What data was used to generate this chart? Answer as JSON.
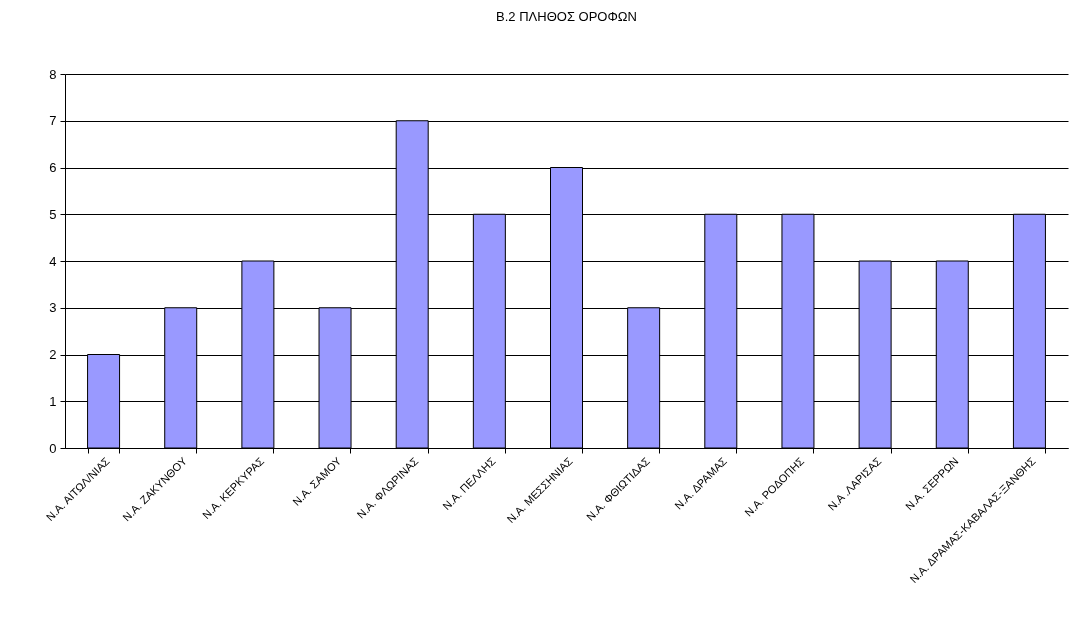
{
  "chart_data": {
    "type": "bar",
    "title": "Β.2 ΠΛΗΘΟΣ ΟΡΟΦΩΝ",
    "categories": [
      "Ν.Α. ΑΙΤΩΛ/ΝΙΑΣ",
      "Ν.Α. ΖΑΚΥΝΘΟΥ",
      "Ν.Α. ΚΕΡΚΥΡΑΣ",
      "Ν.Α. ΣΑΜΟΥ",
      "Ν.Α. ΦΛΩΡΙΝΑΣ",
      "Ν.Α. ΠΕΛΛΗΣ",
      "Ν.Α. ΜΕΣΣΗΝΙΑΣ",
      "Ν.Α. ΦΘΙΩΤΙΔΑΣ",
      "Ν.Α. ΔΡΑΜΑΣ",
      "Ν.Α. ΡΟΔΟΠΗΣ",
      "Ν.Α .ΛΑΡΙΣΑΣ",
      "Ν.Α. ΣΕΡΡΩΝ",
      "Ν.Α. ΔΡΑΜΑΣ-ΚΑΒΑΛΑΣ-ΞΑΝΘΗΣ"
    ],
    "values": [
      2,
      3,
      4,
      3,
      7,
      5,
      6,
      3,
      5,
      5,
      4,
      4,
      5
    ],
    "color": "#9999ff",
    "ylim": [
      0,
      8
    ],
    "yticks": [
      0,
      1,
      2,
      3,
      4,
      5,
      6,
      7,
      8
    ],
    "grid": "y"
  }
}
